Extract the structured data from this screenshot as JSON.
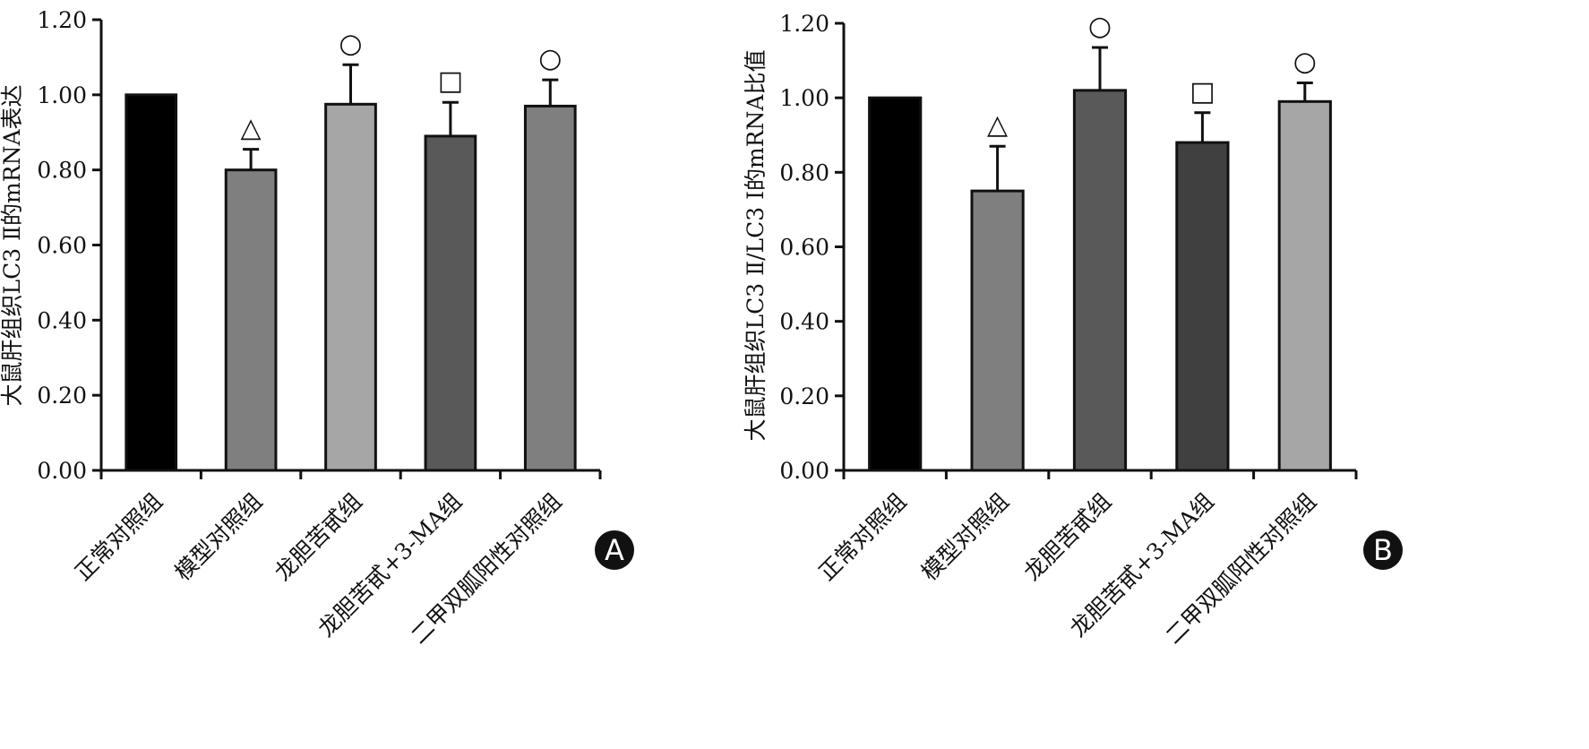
{
  "chart_data": [
    {
      "type": "bar",
      "panel": "A",
      "ylabel": "大鼠肝组织LC3 Ⅱ的mRNA表达",
      "ylim": [
        0,
        1.2
      ],
      "yticks": [
        "0.00",
        "0.20",
        "0.40",
        "0.60",
        "0.80",
        "1.00",
        "1.20"
      ],
      "categories": [
        "正常对照组",
        "模型对照组",
        "龙胆苦甙组",
        "龙胆苦甙+3-MA组",
        "二甲双胍阳性对照组"
      ],
      "values": [
        1.0,
        0.8,
        0.975,
        0.89,
        0.97
      ],
      "errors": [
        0,
        0.055,
        0.105,
        0.09,
        0.07
      ],
      "colors": [
        "#000000",
        "#7f7f7f",
        "#a6a6a6",
        "#595959",
        "#7f7f7f"
      ],
      "markers": [
        "",
        "△",
        "○",
        "□",
        "○"
      ]
    },
    {
      "type": "bar",
      "panel": "B",
      "ylabel": "大鼠肝组织LC3 Ⅱ/LC3 Ⅰ的mRNA比值",
      "ylim": [
        0,
        1.2
      ],
      "yticks": [
        "0.00",
        "0.20",
        "0.40",
        "0.60",
        "0.80",
        "1.00",
        "1.20"
      ],
      "categories": [
        "正常对照组",
        "模型对照组",
        "龙胆苦甙组",
        "龙胆苦甙+3-MA组",
        "二甲双胍阳性对照组"
      ],
      "values": [
        1.0,
        0.75,
        1.02,
        0.88,
        0.99
      ],
      "errors": [
        0,
        0.12,
        0.115,
        0.08,
        0.05
      ],
      "colors": [
        "#000000",
        "#7f7f7f",
        "#595959",
        "#404040",
        "#a6a6a6"
      ],
      "markers": [
        "",
        "△",
        "○",
        "□",
        "○"
      ]
    }
  ]
}
